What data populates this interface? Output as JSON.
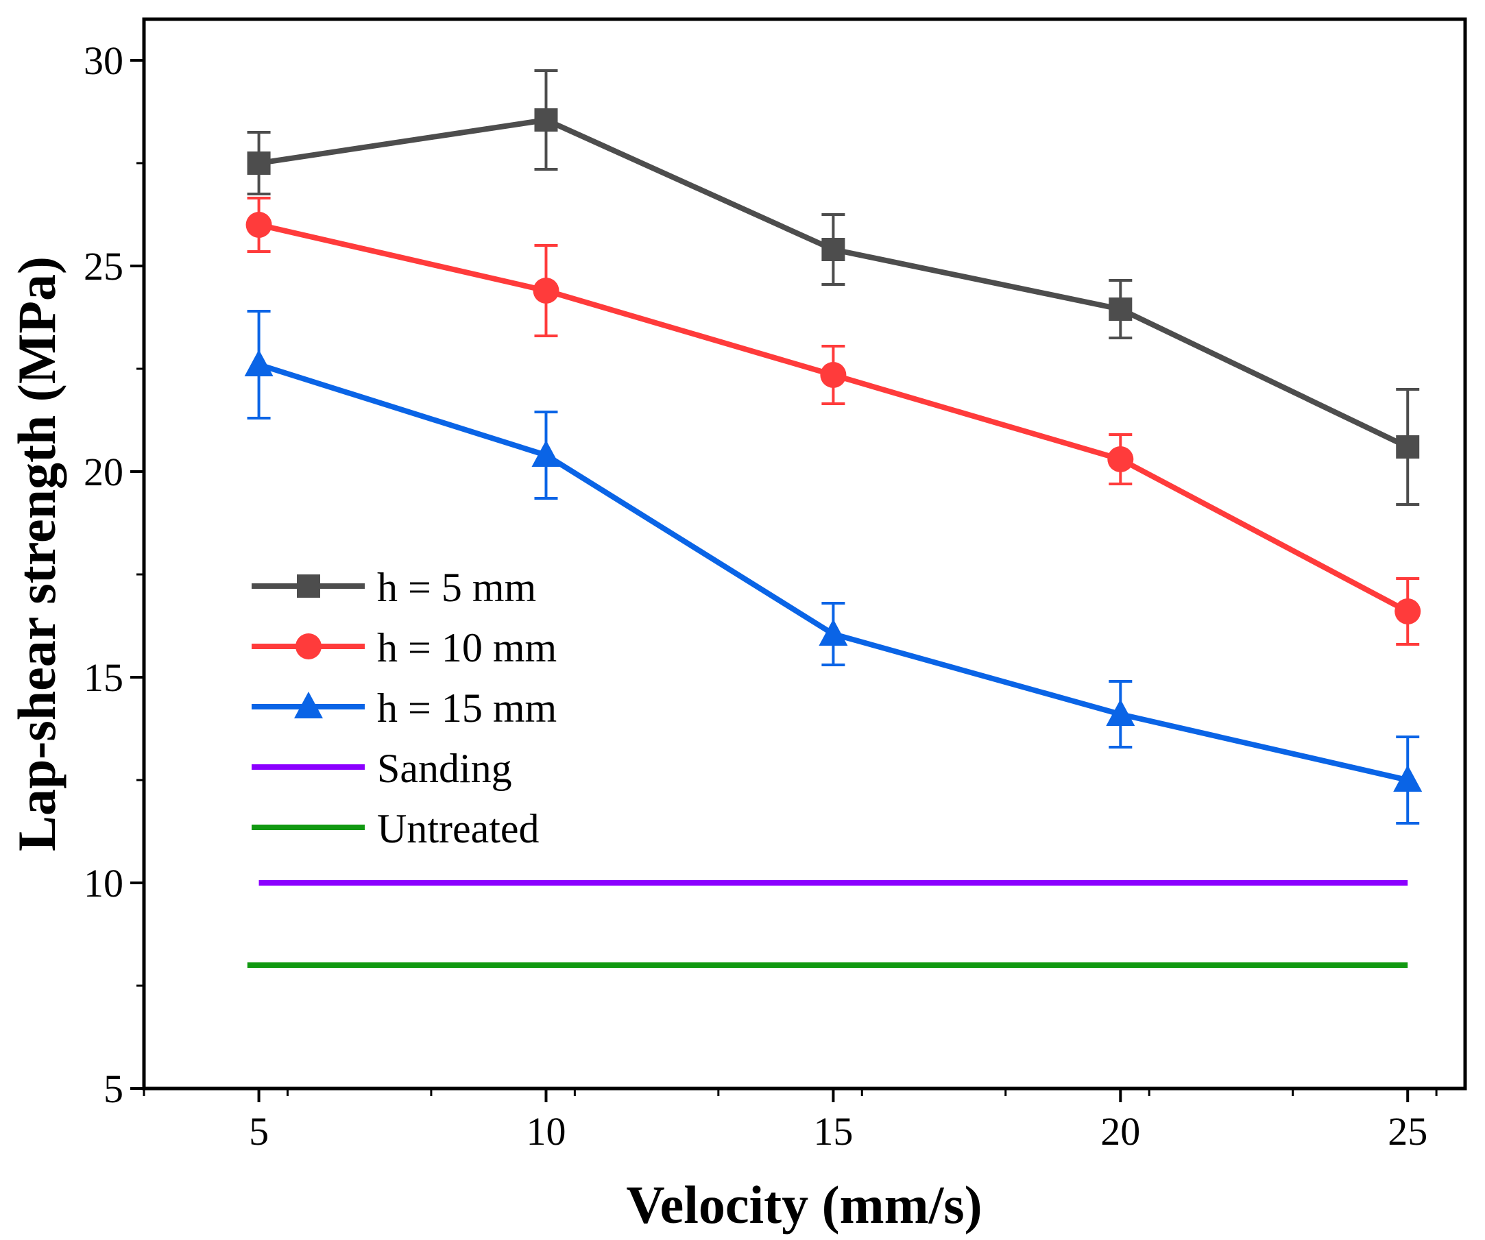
{
  "chart_data": {
    "type": "line",
    "xlabel": "Velocity (mm/s)",
    "ylabel": "Lap-shear strength (MPa)",
    "xlim": [
      3,
      26
    ],
    "ylim": [
      5,
      31
    ],
    "x": [
      5,
      10,
      15,
      20,
      25
    ],
    "xticks": [
      5,
      10,
      15,
      20,
      25
    ],
    "yticks": [
      5,
      10,
      15,
      20,
      25,
      30
    ],
    "grid": false,
    "legend_position": "left-middle",
    "series": [
      {
        "name": "h = 5 mm",
        "marker": "square",
        "color": "#4d4d4d",
        "values": [
          27.5,
          28.55,
          25.4,
          23.95,
          20.6
        ],
        "errors": [
          0.75,
          1.2,
          0.85,
          0.7,
          1.4
        ]
      },
      {
        "name": "h = 10 mm",
        "marker": "circle",
        "color": "#ff3b3b",
        "values": [
          26.0,
          24.4,
          22.35,
          20.3,
          16.6
        ],
        "errors": [
          0.65,
          1.1,
          0.7,
          0.6,
          0.8
        ]
      },
      {
        "name": "h = 15 mm",
        "marker": "triangle",
        "color": "#0a64e6",
        "values": [
          22.6,
          20.4,
          16.05,
          14.1,
          12.5
        ],
        "errors": [
          1.3,
          1.05,
          0.75,
          0.8,
          1.05
        ]
      }
    ],
    "reference_lines": [
      {
        "name": "Sanding",
        "color": "#8b00ff",
        "value": 10.0,
        "x_range": [
          5,
          25
        ]
      },
      {
        "name": "Untreated",
        "color": "#119911",
        "value": 8.0,
        "x_range": [
          4.8,
          25
        ]
      }
    ]
  }
}
